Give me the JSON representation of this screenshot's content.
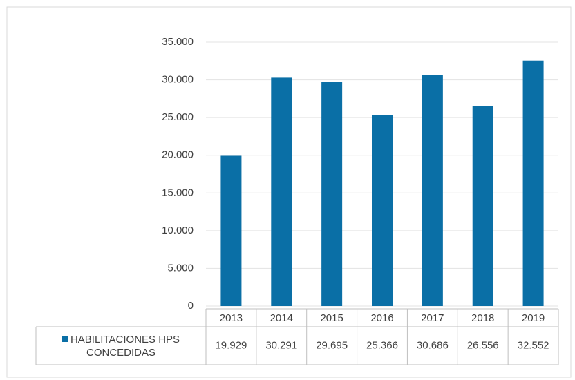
{
  "chart_data": {
    "type": "bar",
    "categories": [
      "2013",
      "2014",
      "2015",
      "2016",
      "2017",
      "2018",
      "2019"
    ],
    "series": [
      {
        "name": "HABILITACIONES HPS CONCEDIDAS",
        "color": "#0a6fa6",
        "values": [
          19929,
          30291,
          29695,
          25366,
          30686,
          26556,
          32552
        ],
        "value_labels": [
          "19.929",
          "30.291",
          "29.695",
          "25.366",
          "30.686",
          "26.556",
          "32.552"
        ]
      }
    ],
    "ylim": [
      0,
      35000
    ],
    "yticks": [
      0,
      {
        "value": 5000,
        "label": "5.000"
      },
      {
        "value": 10000,
        "label": "10.000"
      },
      {
        "value": 15000,
        "label": "15.000"
      },
      {
        "value": 20000,
        "label": "20.000"
      },
      {
        "value": 25000,
        "label": "25.000"
      },
      {
        "value": 30000,
        "label": "30.000"
      },
      {
        "value": 35000,
        "label": "35.000"
      }
    ],
    "grid": true
  }
}
